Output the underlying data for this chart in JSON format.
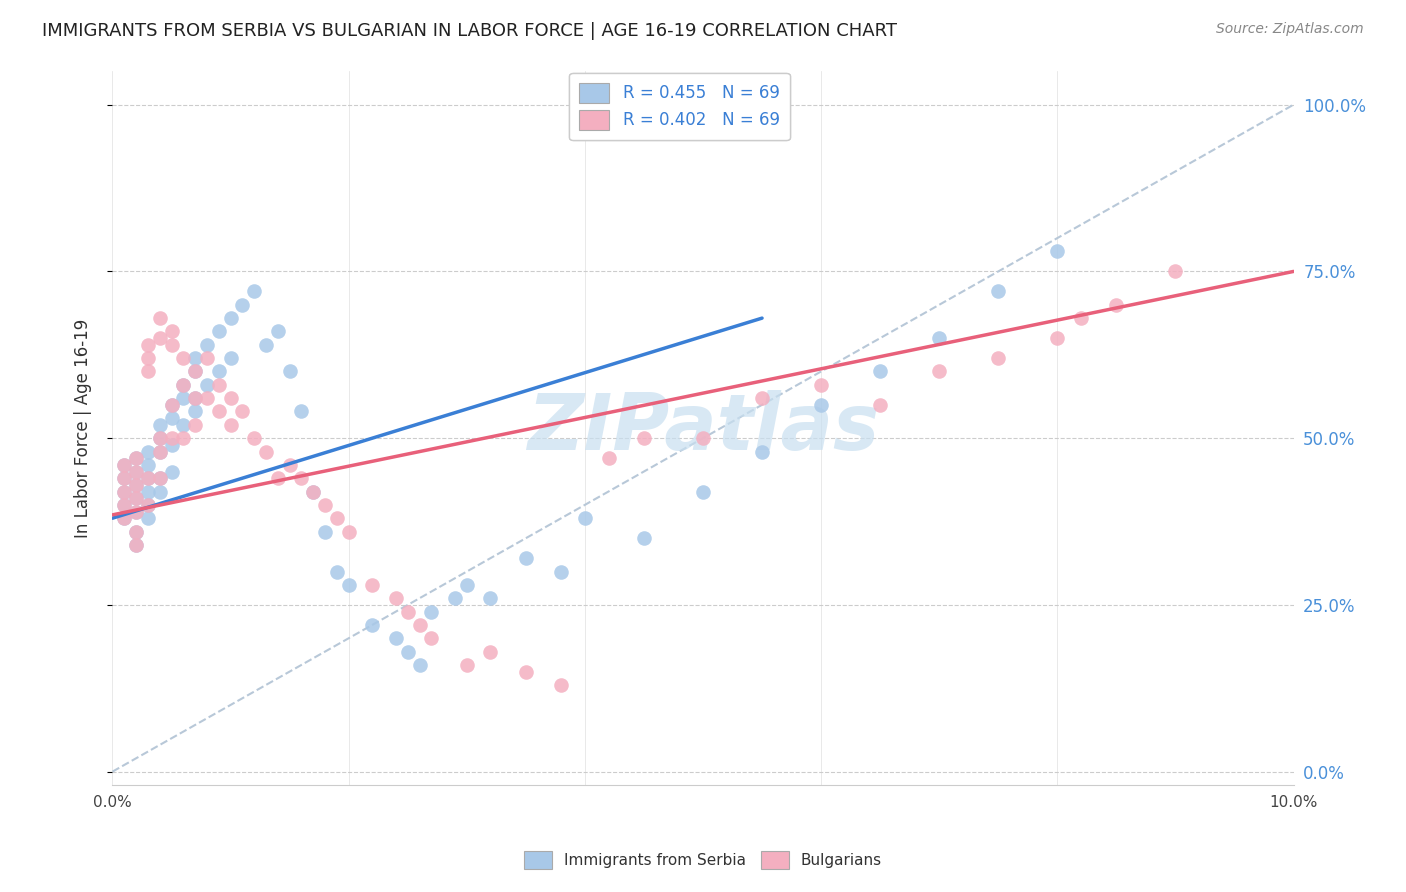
{
  "title": "IMMIGRANTS FROM SERBIA VS BULGARIAN IN LABOR FORCE | AGE 16-19 CORRELATION CHART",
  "source": "Source: ZipAtlas.com",
  "ylabel": "In Labor Force | Age 16-19",
  "x_min": 0.0,
  "x_max": 0.1,
  "y_min": -0.02,
  "y_max": 1.05,
  "serbia_R": 0.455,
  "serbia_N": 69,
  "bulgarian_R": 0.402,
  "bulgarian_N": 69,
  "serbia_color": "#a8c8e8",
  "bulgarian_color": "#f4afc0",
  "serbia_line_color": "#3a7fd5",
  "bulgarian_line_color": "#e8607a",
  "diagonal_line_color": "#b8c8d8",
  "background_color": "#ffffff",
  "grid_color": "#cccccc",
  "watermark_color": "#c8dff0",
  "legend_serbia_label": "R = 0.455   N = 69",
  "legend_bulgarian_label": "R = 0.402   N = 69",
  "serbia_line_x0": 0.0,
  "serbia_line_y0": 0.38,
  "serbia_line_x1": 0.055,
  "serbia_line_y1": 0.68,
  "bulgarian_line_x0": 0.0,
  "bulgarian_line_y0": 0.385,
  "bulgarian_line_x1": 0.1,
  "bulgarian_line_y1": 0.75,
  "serbia_x": [
    0.001,
    0.001,
    0.001,
    0.001,
    0.001,
    0.002,
    0.002,
    0.002,
    0.002,
    0.002,
    0.002,
    0.002,
    0.003,
    0.003,
    0.003,
    0.003,
    0.003,
    0.003,
    0.004,
    0.004,
    0.004,
    0.004,
    0.004,
    0.005,
    0.005,
    0.005,
    0.005,
    0.006,
    0.006,
    0.006,
    0.007,
    0.007,
    0.007,
    0.007,
    0.008,
    0.008,
    0.009,
    0.009,
    0.01,
    0.01,
    0.011,
    0.012,
    0.013,
    0.014,
    0.015,
    0.016,
    0.017,
    0.018,
    0.019,
    0.02,
    0.022,
    0.024,
    0.025,
    0.026,
    0.027,
    0.029,
    0.03,
    0.032,
    0.035,
    0.038,
    0.04,
    0.045,
    0.05,
    0.055,
    0.06,
    0.065,
    0.07,
    0.075,
    0.08
  ],
  "serbia_y": [
    0.42,
    0.44,
    0.46,
    0.4,
    0.38,
    0.43,
    0.45,
    0.47,
    0.41,
    0.39,
    0.36,
    0.34,
    0.44,
    0.46,
    0.48,
    0.42,
    0.4,
    0.38,
    0.5,
    0.52,
    0.48,
    0.44,
    0.42,
    0.55,
    0.53,
    0.49,
    0.45,
    0.58,
    0.56,
    0.52,
    0.6,
    0.62,
    0.56,
    0.54,
    0.64,
    0.58,
    0.66,
    0.6,
    0.68,
    0.62,
    0.7,
    0.72,
    0.64,
    0.66,
    0.6,
    0.54,
    0.42,
    0.36,
    0.3,
    0.28,
    0.22,
    0.2,
    0.18,
    0.16,
    0.24,
    0.26,
    0.28,
    0.26,
    0.32,
    0.3,
    0.38,
    0.35,
    0.42,
    0.48,
    0.55,
    0.6,
    0.65,
    0.72,
    0.78
  ],
  "bulgarian_x": [
    0.001,
    0.001,
    0.001,
    0.001,
    0.001,
    0.002,
    0.002,
    0.002,
    0.002,
    0.002,
    0.002,
    0.002,
    0.003,
    0.003,
    0.003,
    0.003,
    0.003,
    0.004,
    0.004,
    0.004,
    0.004,
    0.004,
    0.005,
    0.005,
    0.005,
    0.005,
    0.006,
    0.006,
    0.006,
    0.007,
    0.007,
    0.007,
    0.008,
    0.008,
    0.009,
    0.009,
    0.01,
    0.01,
    0.011,
    0.012,
    0.013,
    0.014,
    0.015,
    0.016,
    0.017,
    0.018,
    0.019,
    0.02,
    0.022,
    0.024,
    0.025,
    0.026,
    0.027,
    0.03,
    0.032,
    0.035,
    0.038,
    0.042,
    0.045,
    0.05,
    0.055,
    0.06,
    0.065,
    0.07,
    0.075,
    0.08,
    0.082,
    0.085,
    0.09
  ],
  "bulgarian_y": [
    0.42,
    0.44,
    0.46,
    0.4,
    0.38,
    0.43,
    0.45,
    0.47,
    0.41,
    0.39,
    0.36,
    0.34,
    0.6,
    0.62,
    0.64,
    0.44,
    0.4,
    0.68,
    0.65,
    0.5,
    0.48,
    0.44,
    0.66,
    0.64,
    0.55,
    0.5,
    0.62,
    0.58,
    0.5,
    0.6,
    0.56,
    0.52,
    0.62,
    0.56,
    0.58,
    0.54,
    0.56,
    0.52,
    0.54,
    0.5,
    0.48,
    0.44,
    0.46,
    0.44,
    0.42,
    0.4,
    0.38,
    0.36,
    0.28,
    0.26,
    0.24,
    0.22,
    0.2,
    0.16,
    0.18,
    0.15,
    0.13,
    0.47,
    0.5,
    0.5,
    0.56,
    0.58,
    0.55,
    0.6,
    0.62,
    0.65,
    0.68,
    0.7,
    0.75
  ]
}
